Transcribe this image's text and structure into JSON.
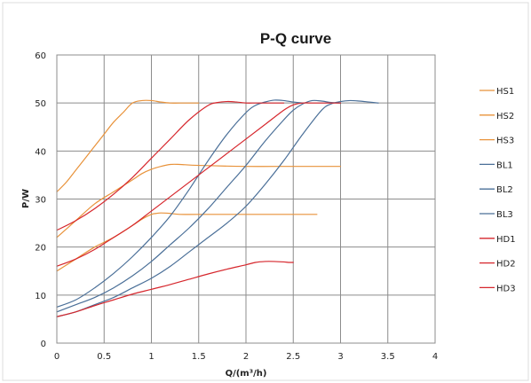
{
  "chart_data": {
    "type": "line",
    "title": "P-Q  curve",
    "xlabel": "Q/(m³/h)",
    "ylabel": "P/W",
    "xlim": [
      0,
      4
    ],
    "ylim": [
      0,
      60
    ],
    "xticks": [
      "0",
      "0.5",
      "1",
      "1.5",
      "2",
      "2.5",
      "3",
      "3.5",
      "4"
    ],
    "yticks": [
      "0",
      "10",
      "20",
      "30",
      "40",
      "50",
      "60"
    ],
    "grid": true,
    "legend_position": "right",
    "series": [
      {
        "name": "HS1",
        "color": "#e8923a",
        "x": [
          0,
          0.1,
          0.2,
          0.3,
          0.4,
          0.5,
          0.6,
          0.7,
          0.8,
          0.9,
          1.0,
          1.1,
          1.2,
          1.3,
          1.5
        ],
        "y": [
          31.5,
          33.5,
          36,
          38.5,
          41,
          43.5,
          46,
          48,
          50,
          50.5,
          50.5,
          50.2,
          50,
          50,
          50
        ]
      },
      {
        "name": "HS2",
        "color": "#e8923a",
        "x": [
          0,
          0.2,
          0.4,
          0.6,
          0.8,
          0.9,
          1.0,
          1.1,
          1.2,
          1.3,
          1.5,
          2.0,
          2.5,
          3.0
        ],
        "y": [
          22,
          25.5,
          29,
          31.5,
          34,
          35.3,
          36.2,
          36.8,
          37.2,
          37.2,
          37,
          36.8,
          36.8,
          36.8
        ]
      },
      {
        "name": "HS3",
        "color": "#e8923a",
        "x": [
          0,
          0.2,
          0.4,
          0.6,
          0.8,
          0.9,
          1.0,
          1.05,
          1.1,
          1.2,
          1.3,
          1.5,
          2.0,
          2.5,
          2.75
        ],
        "y": [
          15,
          17.5,
          20,
          22,
          24.5,
          25.8,
          26.8,
          27,
          27.1,
          27,
          26.8,
          26.8,
          26.8,
          26.8,
          26.8
        ]
      },
      {
        "name": "BL1",
        "color": "#4a6f98",
        "x": [
          0,
          0.2,
          0.4,
          0.6,
          0.8,
          1.0,
          1.2,
          1.4,
          1.6,
          1.8,
          2.0,
          2.1,
          2.2,
          2.3,
          2.4,
          2.5,
          2.6
        ],
        "y": [
          7.5,
          9,
          11.5,
          14.5,
          18,
          22,
          26.5,
          32,
          38,
          43.5,
          48,
          49.5,
          50.2,
          50.6,
          50.5,
          50.2,
          50
        ]
      },
      {
        "name": "BL2",
        "color": "#4a6f98",
        "x": [
          0,
          0.2,
          0.4,
          0.6,
          0.8,
          1.0,
          1.2,
          1.4,
          1.6,
          1.8,
          2.0,
          2.2,
          2.4,
          2.5,
          2.6,
          2.7,
          2.8,
          2.9,
          3.0
        ],
        "y": [
          6.5,
          8,
          9.5,
          11.5,
          14,
          17,
          20.5,
          24,
          28,
          32.5,
          37,
          42,
          46.5,
          48.5,
          49.8,
          50.5,
          50.4,
          50.1,
          50
        ]
      },
      {
        "name": "BL3",
        "color": "#4a6f98",
        "x": [
          0,
          0.2,
          0.4,
          0.6,
          0.8,
          1.0,
          1.2,
          1.4,
          1.6,
          1.8,
          2.0,
          2.2,
          2.4,
          2.6,
          2.8,
          2.9,
          3.0,
          3.1,
          3.2,
          3.3,
          3.4
        ],
        "y": [
          5.5,
          6.5,
          8,
          9.5,
          11.5,
          13.5,
          16,
          19,
          22,
          25,
          28.5,
          33,
          38,
          43.5,
          48.5,
          49.8,
          50.3,
          50.5,
          50.4,
          50.2,
          50
        ]
      },
      {
        "name": "HD1",
        "color": "#d6262c",
        "x": [
          0,
          0.2,
          0.4,
          0.6,
          0.8,
          1.0,
          1.2,
          1.4,
          1.6,
          1.8,
          2.0,
          2.1,
          2.2,
          2.3,
          2.4,
          2.45,
          2.5
        ],
        "y": [
          5.5,
          6.5,
          7.8,
          9,
          10.2,
          11.2,
          12.2,
          13.3,
          14.4,
          15.4,
          16.3,
          16.8,
          17,
          17,
          16.9,
          16.8,
          16.8
        ]
      },
      {
        "name": "HD2",
        "color": "#d6262c",
        "x": [
          0,
          0.2,
          0.4,
          0.6,
          0.8,
          1.0,
          1.2,
          1.4,
          1.6,
          1.8,
          2.0,
          2.2,
          2.4,
          2.5,
          2.6,
          2.7,
          2.8,
          2.9,
          3.0
        ],
        "y": [
          16,
          17.5,
          19.5,
          22,
          24.5,
          27.5,
          30.5,
          33.5,
          36.5,
          39.5,
          42.5,
          45.5,
          48.5,
          49.6,
          50,
          50,
          50,
          50,
          50
        ]
      },
      {
        "name": "HD3",
        "color": "#d6262c",
        "x": [
          0,
          0.2,
          0.4,
          0.6,
          0.8,
          1.0,
          1.2,
          1.4,
          1.6,
          1.7,
          1.8,
          1.9,
          2.0,
          2.1,
          2.2,
          2.3,
          2.4
        ],
        "y": [
          23.5,
          25.5,
          28,
          31,
          34.5,
          38.5,
          42.5,
          46.5,
          49.5,
          50.1,
          50.3,
          50.2,
          50,
          50,
          50,
          50,
          50
        ]
      }
    ]
  }
}
